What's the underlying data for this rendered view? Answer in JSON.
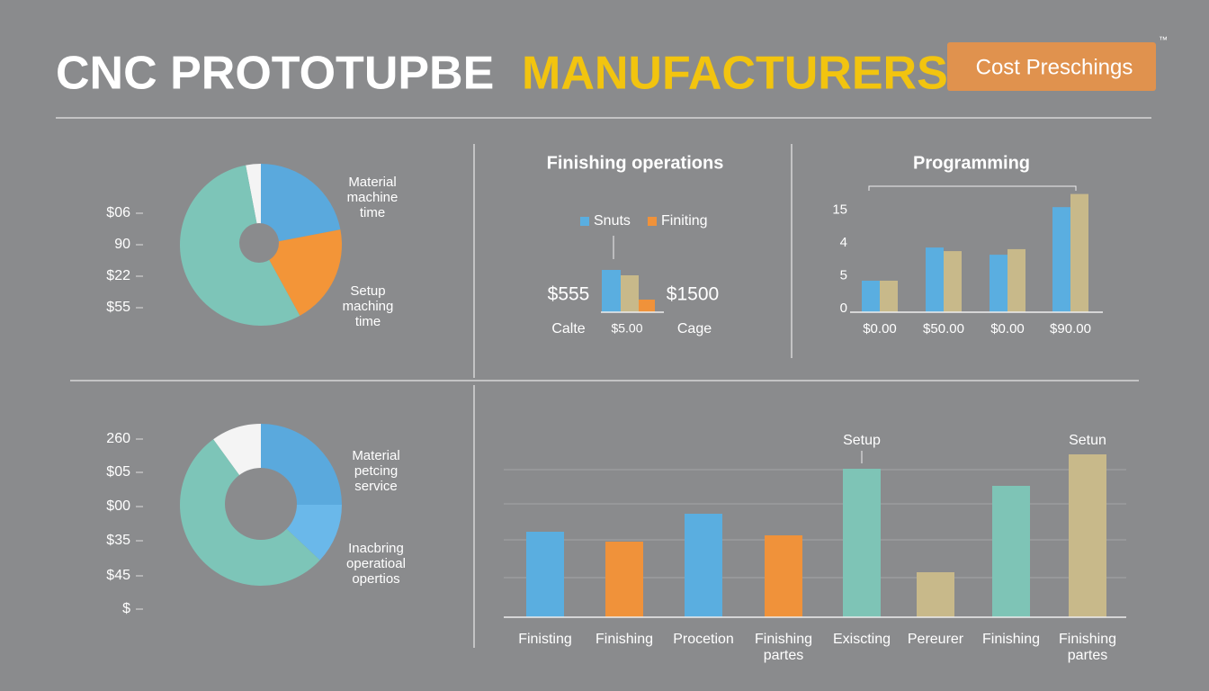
{
  "header": {
    "title_white": "CNC PROTOTUPBE",
    "title_yellow": "MANUFACTURERS",
    "badge": "Cost Preschings",
    "trademark": "™"
  },
  "chart_data": [
    {
      "type": "pie",
      "side_labels": [
        "$06",
        "90",
        "$22",
        "$55"
      ],
      "categories": [
        null,
        "Material machine time",
        "Setup maching time",
        null
      ],
      "values": [
        3,
        22,
        20,
        55
      ],
      "colors": [
        "#f4f4f4",
        "#5aa9dd",
        "#f39538",
        "#7dc5b8"
      ]
    },
    {
      "type": "bar",
      "title": "Finishing operations",
      "categories": [
        "$5.00"
      ],
      "series": [
        {
          "name": "Snuts",
          "color": "#5aaee0",
          "values": [
            47
          ]
        },
        {
          "color": "#c8b98a",
          "values": [
            41
          ]
        },
        {
          "name": "Finiting",
          "color": "#f0923a",
          "values": [
            14
          ]
        }
      ],
      "ylim": [
        0,
        60
      ],
      "annotations": [
        "$555",
        "$1500"
      ],
      "axis_labels": [
        "Calte",
        "Cage"
      ]
    },
    {
      "type": "bar",
      "title": "Programming",
      "categories": [
        "$0.00",
        "$50.00",
        "$0.00",
        "$90.00"
      ],
      "series": [
        {
          "color": "#5aaee0",
          "values": [
            0.96,
            1.97,
            1.75,
            3.2
          ]
        },
        {
          "color": "#c8b98a",
          "values": [
            0.96,
            1.86,
            1.92,
            3.6
          ]
        }
      ],
      "ylim": [
        0,
        3.8
      ],
      "yticks": [
        0,
        {
          "value": 1,
          "label": "5"
        },
        {
          "value": 2,
          "label": "4"
        },
        {
          "value": 3,
          "label": "15"
        }
      ]
    },
    {
      "type": "pie",
      "side_labels": [
        "260",
        "$05",
        "$00",
        "$35",
        "$45",
        "$"
      ],
      "categories": [
        null,
        "Material petcing service",
        "Inacbring operatioal opertios",
        null
      ],
      "values": [
        10,
        25,
        12,
        53
      ],
      "colors": [
        "#f4f4f4",
        "#5aa9dd",
        "#6ab8ea",
        "#7dc5b8"
      ]
    },
    {
      "type": "bar",
      "categories": [
        "Finisting",
        "Finishing",
        "Procetion",
        "Finishing partes",
        "Exiscting",
        "Pereurer",
        "Finishing",
        "Finishing partes"
      ],
      "values": [
        95,
        84,
        115,
        91,
        165,
        50,
        146,
        181
      ],
      "colors": [
        "#5aaee0",
        "#f0923a",
        "#5aaee0",
        "#f0923a",
        "#7ec4b6",
        "#c8b98a",
        "#7ec4b6",
        "#c8b98a"
      ],
      "annotations": [
        null,
        null,
        null,
        null,
        "Setup",
        null,
        null,
        "Setun"
      ],
      "ylim": [
        0,
        190
      ],
      "grid_lines": [
        44,
        86,
        126,
        164
      ]
    }
  ]
}
